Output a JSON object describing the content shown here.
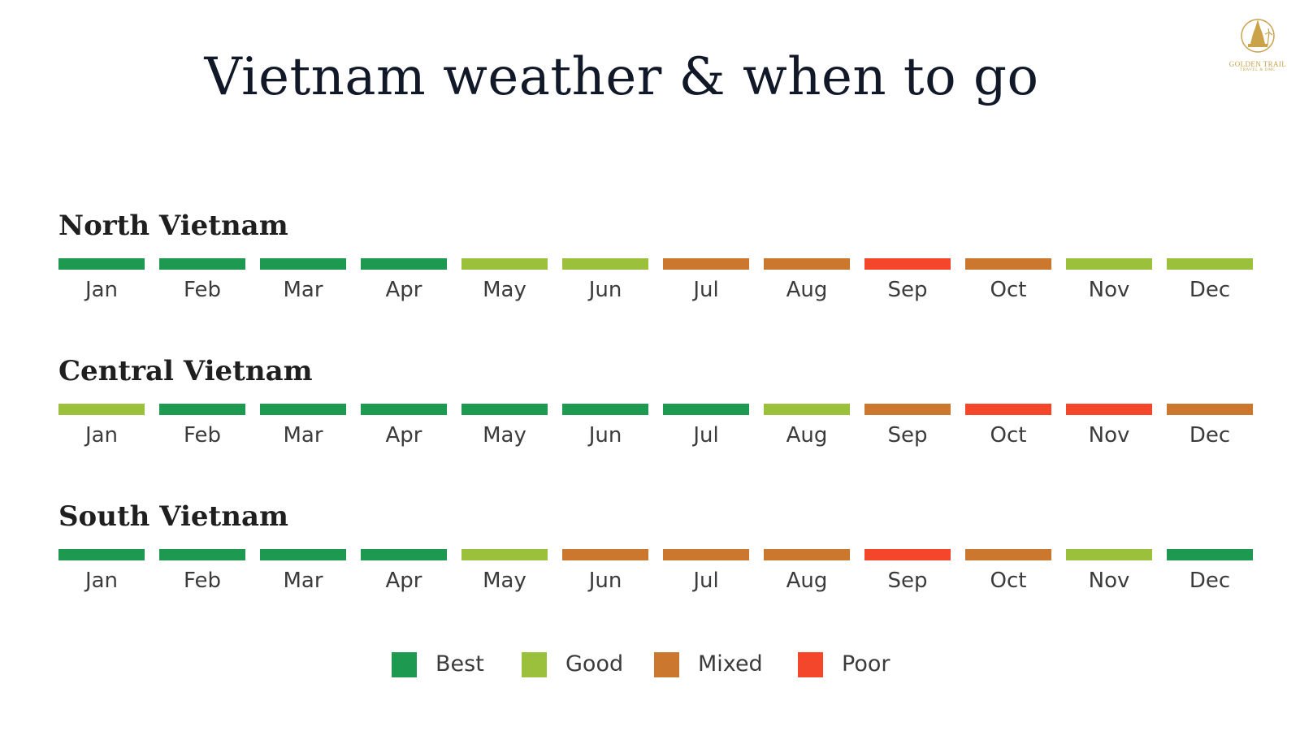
{
  "title": "Vietnam weather & when to go",
  "logo": {
    "name": "GOLDEN TRAIL",
    "sub": "TRAVEL & DMC",
    "color": "#c9a24a"
  },
  "colors": {
    "Best": "#1d9a50",
    "Good": "#9bc03b",
    "Mixed": "#cc772e",
    "Poor": "#f4462a"
  },
  "chart_data": {
    "type": "table",
    "title": "Vietnam weather & when to go",
    "months": [
      "Jan",
      "Feb",
      "Mar",
      "Apr",
      "May",
      "Jun",
      "Jul",
      "Aug",
      "Sep",
      "Oct",
      "Nov",
      "Dec"
    ],
    "rating_scale": [
      "Best",
      "Good",
      "Mixed",
      "Poor"
    ],
    "regions": [
      {
        "name": "North Vietnam",
        "ratings": [
          "Best",
          "Best",
          "Best",
          "Best",
          "Good",
          "Good",
          "Mixed",
          "Mixed",
          "Poor",
          "Mixed",
          "Good",
          "Good"
        ]
      },
      {
        "name": "Central Vietnam",
        "ratings": [
          "Good",
          "Best",
          "Best",
          "Best",
          "Best",
          "Best",
          "Best",
          "Good",
          "Mixed",
          "Poor",
          "Poor",
          "Mixed"
        ]
      },
      {
        "name": "South Vietnam",
        "ratings": [
          "Best",
          "Best",
          "Best",
          "Best",
          "Good",
          "Mixed",
          "Mixed",
          "Mixed",
          "Poor",
          "Mixed",
          "Good",
          "Best"
        ]
      }
    ],
    "legend": [
      "Best",
      "Good",
      "Mixed",
      "Poor"
    ],
    "legend_position": "bottom-center"
  }
}
